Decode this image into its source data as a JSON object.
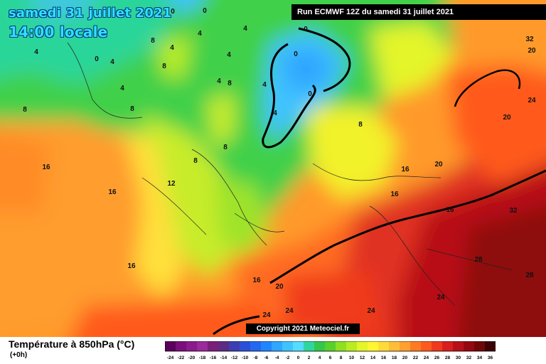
{
  "header": {
    "date": "samedi 31 juillet 2021",
    "local_time": "14:00 locale",
    "run_info": "Run ECMWF 12Z du samedi 31 juillet 2021"
  },
  "map": {
    "variable": "Température à 850hPa (°C)",
    "lead": "(+0h)",
    "copyright": "Copyright 2021 Meteociel.fr",
    "labels": [
      "0",
      "0",
      "0",
      "0",
      "0",
      "0",
      "4",
      "4",
      "4",
      "4",
      "4",
      "4",
      "4",
      "4",
      "4",
      "4",
      "8",
      "8",
      "8",
      "8",
      "8",
      "8",
      "8",
      "8",
      "12",
      "16",
      "16",
      "16",
      "16",
      "16",
      "16",
      "16",
      "20",
      "20",
      "20",
      "20",
      "24",
      "24",
      "24",
      "24",
      "24",
      "28",
      "28",
      "32",
      "32"
    ]
  },
  "scale": {
    "ticks": [
      "-24",
      "-22",
      "-20",
      "-18",
      "-16",
      "-14",
      "-12",
      "-10",
      "-8",
      "-6",
      "-4",
      "-2",
      "0",
      "2",
      "4",
      "6",
      "8",
      "10",
      "12",
      "14",
      "16",
      "18",
      "20",
      "22",
      "24",
      "26",
      "28",
      "30",
      "32",
      "34",
      "36"
    ],
    "colors": [
      "#5a005a",
      "#7a0e7a",
      "#8c1a8c",
      "#9b2a9b",
      "#7a1e7a",
      "#5c2b83",
      "#3b3fb3",
      "#2b50d8",
      "#2468f0",
      "#1f86ff",
      "#2fa6ff",
      "#3fc3ff",
      "#55dcff",
      "#2fd6a0",
      "#33c84b",
      "#5ad02b",
      "#8ee022",
      "#b9ec21",
      "#e4f52a",
      "#fff530",
      "#ffdb3a",
      "#ffbe3a",
      "#ffa030",
      "#ff7b23",
      "#ff5a1e",
      "#f03a1e",
      "#d81e1e",
      "#b81018",
      "#96080f",
      "#700608",
      "#3c0304"
    ]
  }
}
